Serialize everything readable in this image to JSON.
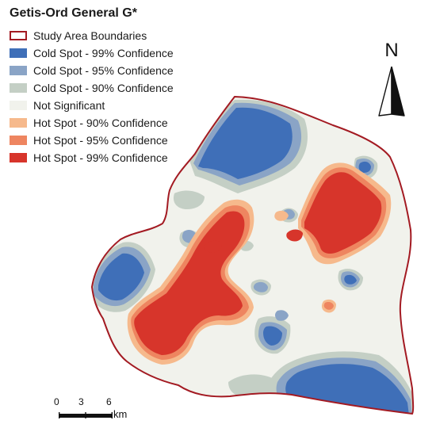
{
  "map": {
    "title": "Getis-Ord General G*",
    "legend": [
      {
        "label": "Study Area Boundaries",
        "color": "#a31a22",
        "kind": "outline"
      },
      {
        "label": "Cold Spot - 99% Confidence",
        "color": "#3f6fb8",
        "kind": "fill"
      },
      {
        "label": "Cold Spot - 95% Confidence",
        "color": "#8aa4c6",
        "kind": "fill"
      },
      {
        "label": "Cold Spot - 90% Confidence",
        "color": "#c4cfc5",
        "kind": "fill"
      },
      {
        "label": "Not Significant",
        "color": "#f1f2ec",
        "kind": "fill"
      },
      {
        "label": "Hot Spot - 90% Confidence",
        "color": "#f6b98c",
        "kind": "fill"
      },
      {
        "label": "Hot Spot - 95% Confidence",
        "color": "#ee8560",
        "kind": "fill"
      },
      {
        "label": "Hot Spot - 99% Confidence",
        "color": "#d7352b",
        "kind": "fill"
      }
    ],
    "north_arrow": {
      "label": "N",
      "icon": "north-arrow-icon"
    },
    "scale_bar": {
      "ticks": [
        "0",
        "3",
        "6"
      ],
      "unit": "km"
    }
  }
}
